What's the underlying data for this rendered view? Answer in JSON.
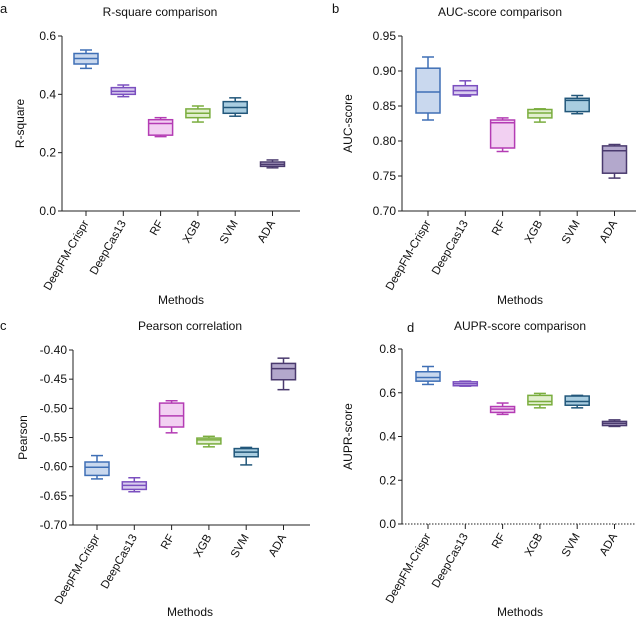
{
  "chart_data": [
    {
      "panel_letter": "a",
      "type": "box",
      "title": "R-square comparison",
      "xlabel": "Methods",
      "ylabel": "R-square",
      "ylim": [
        0,
        0.6
      ],
      "yticks": [
        "0.0",
        "0.2",
        "0.4",
        "0.6"
      ],
      "ytick_values": [
        0,
        0.2,
        0.4,
        0.6
      ],
      "categories": [
        "DeepFM-Crispr",
        "DeepCas13",
        "RF",
        "XGB",
        "SVM",
        "ADA"
      ],
      "boxes": [
        {
          "min": 0.489,
          "q1": 0.504,
          "median": 0.523,
          "q3": 0.54,
          "max": 0.552
        },
        {
          "min": 0.392,
          "q1": 0.4,
          "median": 0.41,
          "q3": 0.423,
          "max": 0.432
        },
        {
          "min": 0.255,
          "q1": 0.26,
          "median": 0.3,
          "q3": 0.313,
          "max": 0.32
        },
        {
          "min": 0.305,
          "q1": 0.32,
          "median": 0.335,
          "q3": 0.35,
          "max": 0.36
        },
        {
          "min": 0.325,
          "q1": 0.335,
          "median": 0.355,
          "q3": 0.375,
          "max": 0.388
        },
        {
          "min": 0.148,
          "q1": 0.153,
          "median": 0.16,
          "q3": 0.168,
          "max": 0.175
        }
      ]
    },
    {
      "panel_letter": "b",
      "type": "box",
      "title": "AUC-score comparison",
      "xlabel": "Methods",
      "ylabel": "AUC-score",
      "ylim": [
        0.7,
        0.95
      ],
      "yticks": [
        "0.70",
        "0.75",
        "0.80",
        "0.85",
        "0.90",
        "0.95"
      ],
      "ytick_values": [
        0.7,
        0.75,
        0.8,
        0.85,
        0.9,
        0.95
      ],
      "categories": [
        "DeepFM-Crispr",
        "DeepCas13",
        "RF",
        "XGB",
        "SVM",
        "ADA"
      ],
      "boxes": [
        {
          "min": 0.83,
          "q1": 0.84,
          "median": 0.87,
          "q3": 0.904,
          "max": 0.92
        },
        {
          "min": 0.864,
          "q1": 0.866,
          "median": 0.872,
          "q3": 0.879,
          "max": 0.886
        },
        {
          "min": 0.785,
          "q1": 0.79,
          "median": 0.826,
          "q3": 0.83,
          "max": 0.833
        },
        {
          "min": 0.827,
          "q1": 0.833,
          "median": 0.84,
          "q3": 0.845,
          "max": 0.846
        },
        {
          "min": 0.839,
          "q1": 0.842,
          "median": 0.858,
          "q3": 0.861,
          "max": 0.865
        },
        {
          "min": 0.747,
          "q1": 0.754,
          "median": 0.786,
          "q3": 0.793,
          "max": 0.795
        }
      ]
    },
    {
      "panel_letter": "c",
      "type": "box",
      "title": "Pearson correlation",
      "xlabel": "Methods",
      "ylabel": "Pearson",
      "ylim": [
        -0.7,
        -0.4
      ],
      "yticks": [
        "-0.70",
        "-0.65",
        "-0.60",
        "-0.55",
        "-0.50",
        "-0.45",
        "-0.40"
      ],
      "ytick_values": [
        -0.7,
        -0.65,
        -0.6,
        -0.55,
        -0.5,
        -0.45,
        -0.4
      ],
      "categories": [
        "DeepFM-Crispr",
        "DeepCas13",
        "RF",
        "XGB",
        "SVM",
        "ADA"
      ],
      "boxes": [
        {
          "min": -0.621,
          "q1": -0.615,
          "median": -0.601,
          "q3": -0.592,
          "max": -0.581
        },
        {
          "min": -0.643,
          "q1": -0.639,
          "median": -0.632,
          "q3": -0.626,
          "max": -0.619
        },
        {
          "min": -0.542,
          "q1": -0.532,
          "median": -0.513,
          "q3": -0.491,
          "max": -0.487
        },
        {
          "min": -0.566,
          "q1": -0.561,
          "median": -0.554,
          "q3": -0.551,
          "max": -0.548
        },
        {
          "min": -0.597,
          "q1": -0.583,
          "median": -0.575,
          "q3": -0.569,
          "max": -0.567
        },
        {
          "min": -0.468,
          "q1": -0.451,
          "median": -0.432,
          "q3": -0.423,
          "max": -0.414
        }
      ]
    },
    {
      "panel_letter": "d",
      "type": "box",
      "title": "AUPR-score comparison",
      "xlabel": "Methods",
      "ylabel": "AUPR-score",
      "ylim": [
        0,
        0.8
      ],
      "yticks": [
        "0.0",
        "0.2",
        "0.4",
        "0.6",
        "0.8"
      ],
      "ytick_values": [
        0,
        0.2,
        0.4,
        0.6,
        0.8
      ],
      "categories": [
        "DeepFM-Crispr",
        "DeepCas13",
        "RF",
        "XGB",
        "SVM",
        "ADA"
      ],
      "zero_line": "dotted",
      "boxes": [
        {
          "min": 0.638,
          "q1": 0.653,
          "median": 0.67,
          "q3": 0.696,
          "max": 0.72
        },
        {
          "min": 0.63,
          "q1": 0.632,
          "median": 0.641,
          "q3": 0.65,
          "max": 0.653
        },
        {
          "min": 0.501,
          "q1": 0.51,
          "median": 0.525,
          "q3": 0.537,
          "max": 0.553
        },
        {
          "min": 0.531,
          "q1": 0.545,
          "median": 0.56,
          "q3": 0.588,
          "max": 0.597
        },
        {
          "min": 0.531,
          "q1": 0.543,
          "median": 0.56,
          "q3": 0.585,
          "max": 0.588
        },
        {
          "min": 0.446,
          "q1": 0.45,
          "median": 0.46,
          "q3": 0.469,
          "max": 0.476
        }
      ]
    }
  ],
  "colors": {
    "stroke": [
      "#3f6fb5",
      "#7b4fbf",
      "#b43cb4",
      "#7aad3e",
      "#22577a",
      "#4a3a6e"
    ],
    "fill": [
      "#c9d8ee",
      "#d9cdef",
      "#f2d0f2",
      "#e2efcf",
      "#a9cde0",
      "#b3a8cc"
    ]
  }
}
